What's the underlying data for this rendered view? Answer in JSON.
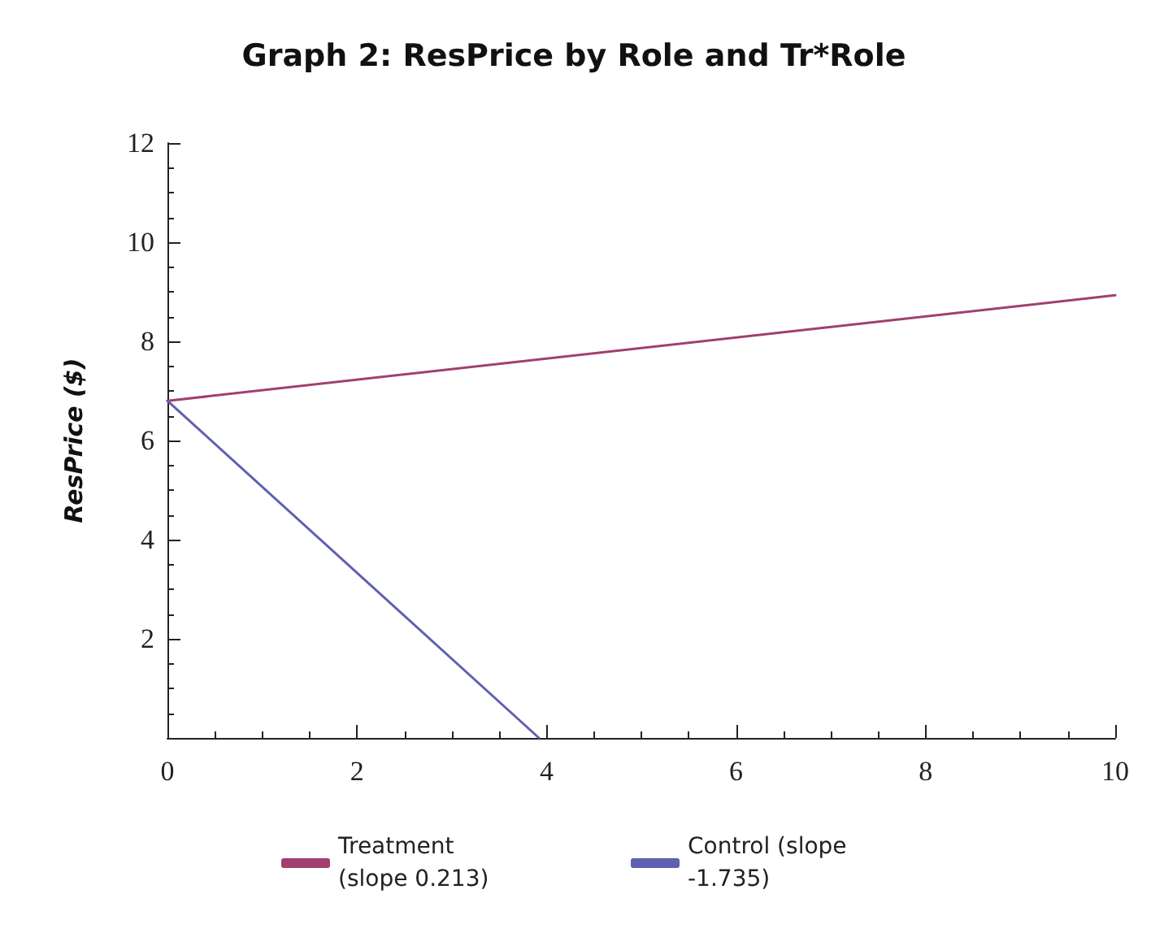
{
  "chart_data": {
    "type": "line",
    "title": "Graph 2: ResPrice by Role and Tr*Role",
    "ylabel": "ResPrice ($)",
    "series": [
      {
        "name": "Treatment (slope 0.213)",
        "color": "#a0406f",
        "x": [
          0,
          10
        ],
        "values": [
          6.8,
          8.93
        ]
      },
      {
        "name": "Control (slope -1.735)",
        "color": "#6060b0",
        "x": [
          0,
          3.92
        ],
        "values": [
          6.8,
          0
        ]
      }
    ],
    "xlim": [
      0,
      10
    ],
    "xticks": [
      0,
      2,
      4,
      6,
      8,
      10
    ],
    "ylim": [
      0,
      12
    ],
    "yticks": [
      2,
      4,
      6,
      8,
      10,
      12
    ],
    "grid": false,
    "legend": "bottom",
    "marker": "none",
    "line_style": "solid"
  }
}
